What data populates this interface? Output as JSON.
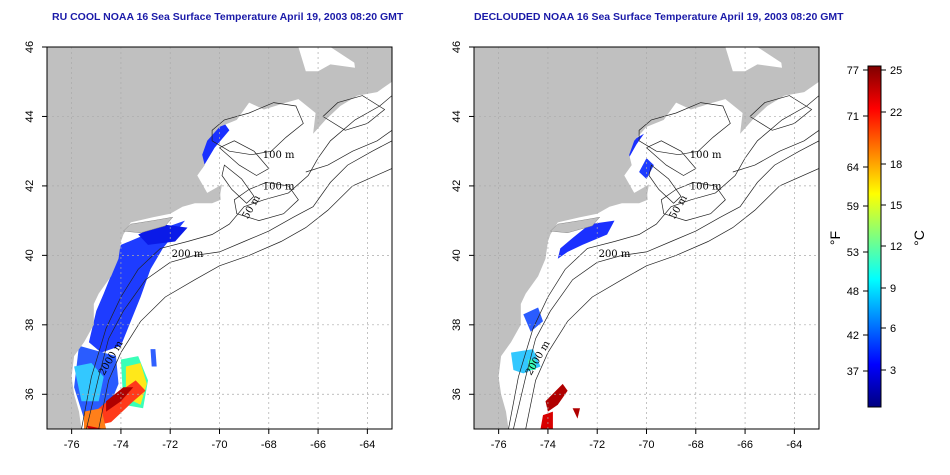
{
  "panels": [
    {
      "id": "left",
      "title": "RU COOL NOAA 16 Sea Surface Temperature April 19, 2003 08:20 GMT",
      "contour_labels": [
        "100 m",
        "100 m",
        "50 m",
        "200 m",
        "2000 m"
      ]
    },
    {
      "id": "right",
      "title": "DECLOUDED NOAA 16 Sea Surface Temperature April 19, 2003 08:20 GMT",
      "contour_labels": [
        "100 m",
        "100 m",
        "50 m",
        "200 m",
        "2000 m"
      ]
    }
  ],
  "axes": {
    "x_ticks": [
      "-76",
      "-74",
      "-72",
      "-70",
      "-68",
      "-66",
      "-64"
    ],
    "y_ticks": [
      "36",
      "38",
      "40",
      "42",
      "44",
      "46"
    ],
    "lon_range": [
      -77,
      -63
    ],
    "lat_range": [
      35,
      46
    ]
  },
  "colorbar": {
    "f_label": "°F",
    "c_label": "°C",
    "f_ticks": [
      "77",
      "71",
      "64",
      "59",
      "53",
      "48",
      "42",
      "37"
    ],
    "c_ticks": [
      "25",
      "22",
      "18",
      "15",
      "12",
      "9",
      "6",
      "3"
    ],
    "colors": [
      "#00007f",
      "#0000ff",
      "#007fff",
      "#00ffff",
      "#7fff7f",
      "#ffff00",
      "#ff7f00",
      "#ff0000",
      "#7f0000"
    ]
  },
  "colors": {
    "land": "#c0c0c0",
    "title": "#1a1aa8",
    "grid": "#aaaaaa"
  }
}
